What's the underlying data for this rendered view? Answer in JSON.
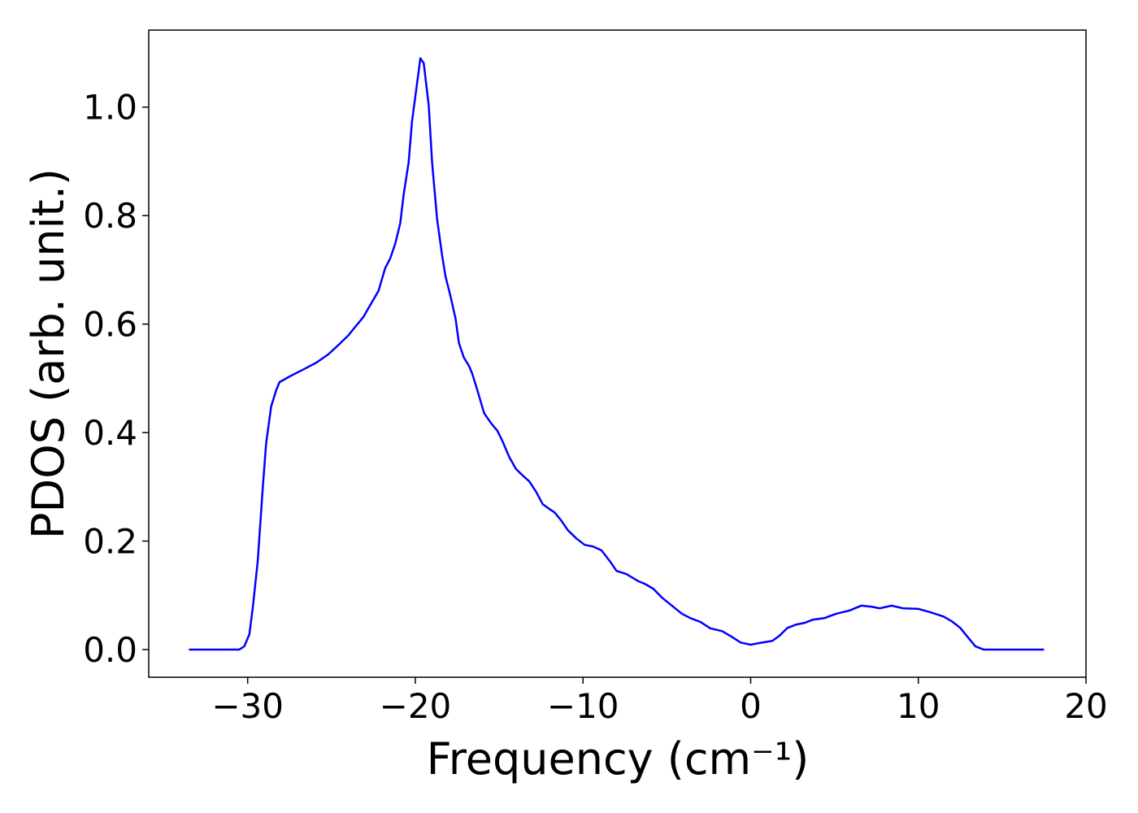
{
  "chart_data": {
    "type": "line",
    "xlabel": "Frequency (cm⁻¹)",
    "ylabel": "PDOS (arb. unit.)",
    "xlim": [
      -35.9,
      20
    ],
    "ylim": [
      -0.051,
      1.142
    ],
    "xticks": [
      {
        "value": -30,
        "label": "−30"
      },
      {
        "value": -20,
        "label": "−20"
      },
      {
        "value": -10,
        "label": "−10"
      },
      0,
      10,
      20
    ],
    "yticks": [
      {
        "value": 0,
        "label": "0.0"
      },
      {
        "value": 0.2,
        "label": "0.2"
      },
      {
        "value": 0.4,
        "label": "0.4"
      },
      {
        "value": 0.6,
        "label": "0.6"
      },
      {
        "value": 0.8,
        "label": "0.8"
      },
      {
        "value": 1.0,
        "label": "1.0"
      }
    ],
    "grid": false,
    "series": [
      {
        "name": "PDOS",
        "color": "#0000ff",
        "x": [
          -33.5,
          -30.5,
          -30.2,
          -29.9,
          -29.7,
          -29.4,
          -29.1,
          -28.9,
          -28.6,
          -28.3,
          -28.1,
          -27.4,
          -26.7,
          -25.9,
          -25.2,
          -24.5,
          -24.0,
          -23.5,
          -23.1,
          -22.6,
          -22.2,
          -21.8,
          -21.5,
          -21.2,
          -20.9,
          -20.7,
          -20.4,
          -20.2,
          -19.9,
          -19.7,
          -19.5,
          -19.2,
          -19.0,
          -18.7,
          -18.4,
          -18.2,
          -17.9,
          -17.6,
          -17.4,
          -17.1,
          -16.8,
          -16.6,
          -16.3,
          -15.9,
          -15.5,
          -15.1,
          -14.8,
          -14.4,
          -14.0,
          -13.6,
          -13.2,
          -12.8,
          -12.4,
          -12.0,
          -11.7,
          -11.3,
          -10.9,
          -10.4,
          -9.9,
          -9.4,
          -8.9,
          -8.4,
          -8.0,
          -7.4,
          -6.7,
          -6.3,
          -5.8,
          -5.3,
          -4.7,
          -4.1,
          -3.6,
          -3.0,
          -2.4,
          -1.7,
          -1.2,
          -0.6,
          0,
          0.5,
          1.3,
          1.7,
          2.2,
          2.7,
          3.2,
          3.7,
          4.4,
          5.1,
          5.9,
          6.6,
          7.2,
          7.7,
          8.4,
          9.1,
          10.0,
          10.7,
          11.5,
          12.0,
          12.5,
          13.0,
          13.4,
          13.9,
          17.5
        ],
        "values": [
          0,
          0,
          0.006,
          0.028,
          0.076,
          0.163,
          0.298,
          0.38,
          0.448,
          0.478,
          0.493,
          0.505,
          0.516,
          0.529,
          0.544,
          0.564,
          0.579,
          0.598,
          0.613,
          0.64,
          0.661,
          0.703,
          0.721,
          0.748,
          0.786,
          0.838,
          0.898,
          0.973,
          1.043,
          1.09,
          1.081,
          1.003,
          0.898,
          0.793,
          0.726,
          0.688,
          0.651,
          0.61,
          0.565,
          0.538,
          0.523,
          0.508,
          0.478,
          0.436,
          0.418,
          0.403,
          0.384,
          0.355,
          0.333,
          0.321,
          0.31,
          0.291,
          0.268,
          0.259,
          0.253,
          0.238,
          0.22,
          0.205,
          0.193,
          0.19,
          0.183,
          0.163,
          0.145,
          0.139,
          0.126,
          0.121,
          0.112,
          0.096,
          0.081,
          0.066,
          0.058,
          0.051,
          0.039,
          0.034,
          0.025,
          0.013,
          0.009,
          0.012,
          0.016,
          0.025,
          0.04,
          0.046,
          0.049,
          0.055,
          0.058,
          0.066,
          0.072,
          0.081,
          0.079,
          0.076,
          0.081,
          0.076,
          0.075,
          0.069,
          0.061,
          0.052,
          0.04,
          0.021,
          0.006,
          0,
          0
        ]
      }
    ]
  }
}
